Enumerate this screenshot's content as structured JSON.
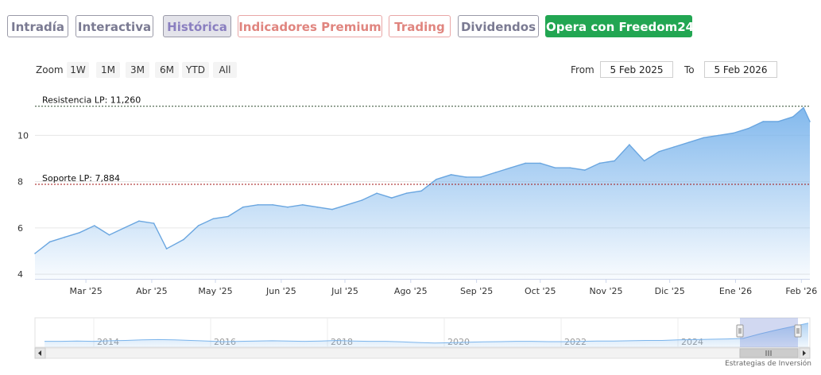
{
  "tabs": [
    {
      "label": "Intradía",
      "state": "normal"
    },
    {
      "label": "Interactiva",
      "state": "normal"
    },
    {
      "label": "Histórica",
      "state": "active"
    },
    {
      "label": "Indicadores Premium",
      "state": "premium"
    },
    {
      "label": "Trading",
      "state": "premium"
    },
    {
      "label": "Dividendos",
      "state": "normal"
    },
    {
      "label": "Opera con Freedom24",
      "state": "cta"
    }
  ],
  "zoom": {
    "label": "Zoom",
    "buttons": [
      "1W",
      "1M",
      "3M",
      "6M",
      "YTD",
      "All"
    ]
  },
  "range": {
    "from_label": "From",
    "from_value": "5 Feb 2025",
    "to_label": "To",
    "to_value": "5 Feb 2026"
  },
  "credit": "Estrategias de Inversión",
  "colors": {
    "line": "#7cb5ec",
    "resistance": "#2e4a2e",
    "support": "#a01010",
    "cta": "#22a652"
  },
  "chart_data": {
    "type": "area",
    "x_ticks": [
      "Mar '25",
      "Abr '25",
      "May '25",
      "Jun '25",
      "Jul '25",
      "Ago '25",
      "Sep '25",
      "Oct '25",
      "Nov '25",
      "Dic '25",
      "Ene '26",
      "Feb '26"
    ],
    "y_ticks": [
      "4",
      "6",
      "8",
      "10"
    ],
    "ylim": [
      3.8,
      11.8
    ],
    "x": [
      "2025-02-05",
      "2025-02-12",
      "2025-02-19",
      "2025-02-26",
      "2025-03-05",
      "2025-03-12",
      "2025-03-19",
      "2025-03-26",
      "2025-04-02",
      "2025-04-08",
      "2025-04-16",
      "2025-04-23",
      "2025-04-30",
      "2025-05-07",
      "2025-05-14",
      "2025-05-21",
      "2025-05-28",
      "2025-06-04",
      "2025-06-11",
      "2025-06-18",
      "2025-06-25",
      "2025-07-02",
      "2025-07-09",
      "2025-07-16",
      "2025-07-23",
      "2025-07-30",
      "2025-08-06",
      "2025-08-13",
      "2025-08-20",
      "2025-08-27",
      "2025-09-03",
      "2025-09-10",
      "2025-09-17",
      "2025-09-24",
      "2025-10-01",
      "2025-10-08",
      "2025-10-15",
      "2025-10-22",
      "2025-10-29",
      "2025-11-05",
      "2025-11-12",
      "2025-11-19",
      "2025-11-26",
      "2025-12-03",
      "2025-12-10",
      "2025-12-17",
      "2025-12-24",
      "2025-12-31",
      "2026-01-07",
      "2026-01-14",
      "2026-01-21",
      "2026-01-28",
      "2026-02-02",
      "2026-02-05"
    ],
    "series": [
      {
        "values": [
          4.9,
          5.4,
          5.6,
          5.8,
          6.1,
          5.7,
          6.0,
          6.3,
          6.2,
          5.1,
          5.5,
          6.1,
          6.4,
          6.5,
          6.9,
          7.0,
          7.0,
          6.9,
          7.0,
          6.9,
          6.8,
          7.0,
          7.2,
          7.5,
          7.3,
          7.5,
          7.6,
          8.1,
          8.3,
          8.2,
          8.2,
          8.4,
          8.6,
          8.8,
          8.8,
          8.6,
          8.6,
          8.5,
          8.8,
          8.9,
          9.6,
          8.9,
          9.3,
          9.5,
          9.7,
          9.9,
          10.0,
          10.1,
          10.3,
          10.6,
          10.6,
          10.8,
          11.2,
          10.6
        ]
      }
    ],
    "resistance": {
      "label": "Resistencia LP: 11,260",
      "value": 11.26
    },
    "support": {
      "label": "Soporte LP: 7,884",
      "value": 7.884
    },
    "navigator": {
      "ticks": [
        "2014",
        "2016",
        "2018",
        "2020",
        "2022",
        "2024"
      ]
    }
  }
}
